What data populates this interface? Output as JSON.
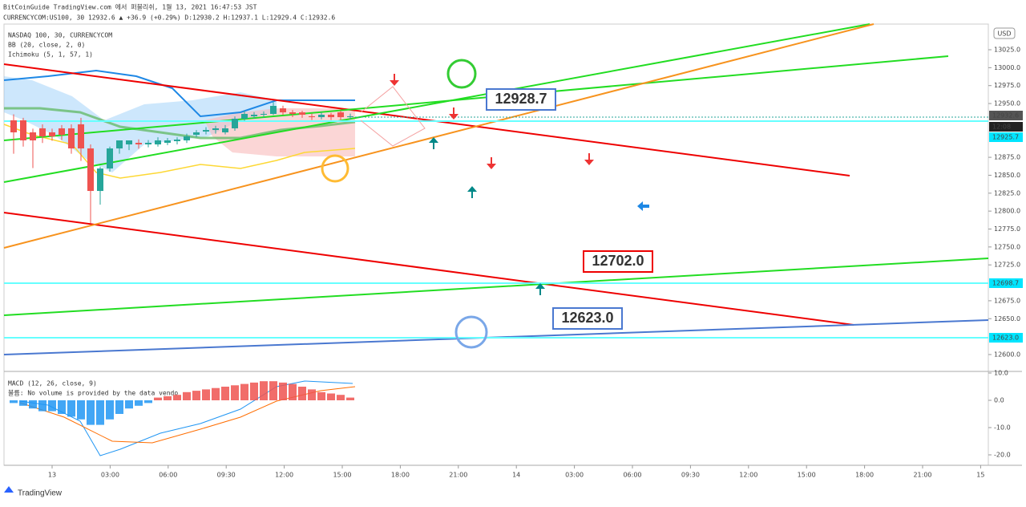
{
  "header": {
    "publisher": "BitCoinGuide TradingView.com 에서 퍼블리쉬, 1월 13, 2021 16:47:53 JST",
    "quote": "CURRENCYCOM:US100, 30 12932.6 ▲ +36.9 (+0.29%) D:12930.2 H:12937.1 L:12929.4 C:12932.6"
  },
  "legend": [
    "NASDAQ 100, 30, CURRENCYCOM",
    "BB (20, close, 2, 0)",
    "Ichimoku (5, 1, 57, 1)"
  ],
  "currency": "USD",
  "price_ticks": [
    {
      "value": 13025,
      "label": "13025.0"
    },
    {
      "value": 13000,
      "label": "13000.0"
    },
    {
      "value": 12975,
      "label": "12975.0"
    },
    {
      "value": 12950,
      "label": "12950.0"
    },
    {
      "value": 12875,
      "label": "12875.0"
    },
    {
      "value": 12850,
      "label": "12850.0"
    },
    {
      "value": 12825,
      "label": "12825.0"
    },
    {
      "value": 12800,
      "label": "12800.0"
    },
    {
      "value": 12775,
      "label": "12775.0"
    },
    {
      "value": 12750,
      "label": "12750.0"
    },
    {
      "value": 12725,
      "label": "12725.0"
    },
    {
      "value": 12675,
      "label": "12675.0"
    },
    {
      "value": 12650,
      "label": "12650.0"
    },
    {
      "value": 12600,
      "label": "12600.0"
    }
  ],
  "price_badges": [
    "12932.6",
    "12:08",
    "12925.7",
    "12698.7",
    "12623.0"
  ],
  "callouts": [
    "12928.7",
    "12702.0",
    "12623.0"
  ],
  "candles": {
    "open": [
      12926.6,
      12926.6,
      12909.8,
      12915.4,
      12909.8,
      12915.4,
      12915.4,
      12921,
      12887.4,
      12828.1,
      12859.4,
      12887.4,
      12893,
      12895.2,
      12893,
      12893,
      12895.2,
      12897.5,
      12898.6,
      12906.4,
      12910.9,
      12913.1,
      12909.8,
      12915.4,
      12928.8,
      12932.2,
      12934.4,
      12935.5,
      12943.3,
      12937.7,
      12937.7,
      12932.2,
      12931,
      12934.4,
      12937.7,
      12931
    ],
    "high": [
      12935,
      12930,
      12915,
      12921,
      12915,
      12920,
      12921,
      12930,
      12893,
      12862,
      12890,
      12893,
      12898,
      12900,
      12899,
      12903,
      12902,
      12903,
      12908,
      12913,
      12917,
      12919,
      12920,
      12932,
      12940,
      12938,
      12939,
      12952,
      12947,
      12941,
      12940,
      12936,
      12938,
      12937,
      12940,
      12936
    ],
    "low": [
      12880,
      12890,
      12860,
      12895,
      12898,
      12899,
      12880,
      12870,
      12783,
      12809,
      12855,
      12880,
      12885,
      12887,
      12889,
      12890,
      12892,
      12893,
      12895,
      12903,
      12907,
      12908,
      12907,
      12912,
      12926,
      12929,
      12930,
      12934,
      12934,
      12931,
      12930,
      12927,
      12928,
      12927,
      12927,
      12928
    ],
    "close": [
      12909.8,
      12898.6,
      12898.6,
      12904.2,
      12904.2,
      12906.4,
      12887.4,
      12887.4,
      12828.1,
      12859.4,
      12887.4,
      12898.6,
      12898.6,
      12893,
      12895.2,
      12898.6,
      12898.6,
      12899.7,
      12904.2,
      12909.8,
      12913.1,
      12915.4,
      12915.4,
      12928.8,
      12935.5,
      12934.4,
      12935.5,
      12946.7,
      12937.7,
      12935.5,
      12934.4,
      12931,
      12934.4,
      12931,
      12931,
      12932.2
    ]
  },
  "macd": {
    "title": "MACD (12, 26, close, 9)",
    "volume_note": "볼륨: No volume is provided by the data vendo",
    "ticks": [
      {
        "value": 10,
        "label": "10.0"
      },
      {
        "value": 0,
        "label": "0.0"
      },
      {
        "value": -10,
        "label": "-10.0"
      },
      {
        "value": -20,
        "label": "-20.0"
      }
    ],
    "histogram": [
      -1,
      -2,
      -3,
      -4,
      -4,
      -5,
      -6,
      -7,
      -9,
      -9,
      -7,
      -5,
      -3,
      -2,
      -1,
      1,
      1.5,
      2,
      3,
      3.5,
      4,
      4.5,
      5,
      5.5,
      6,
      6.5,
      7,
      7,
      6.5,
      6,
      5,
      4,
      3,
      2.5,
      2,
      1
    ]
  },
  "time_labels": [
    "13",
    "03:00",
    "06:00",
    "09:30",
    "12:00",
    "15:00",
    "18:00",
    "21:00",
    "14",
    "03:00",
    "06:00",
    "09:30",
    "12:00",
    "15:00",
    "18:00",
    "21:00",
    "15"
  ],
  "footer": "TradingView"
}
